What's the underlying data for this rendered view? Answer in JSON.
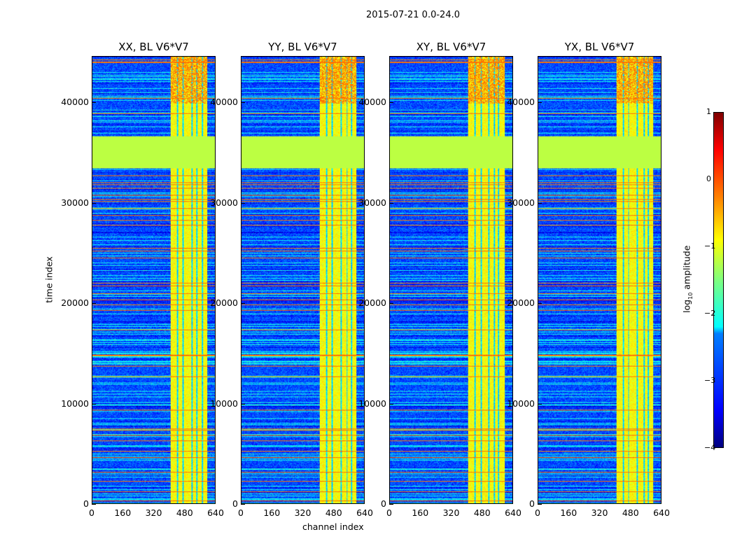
{
  "chart_data": {
    "type": "heatmap",
    "title": "2015-07-21 0.0-24.0",
    "panels": [
      {
        "title": "XX, BL V6*V7",
        "seed": 11
      },
      {
        "title": "YY, BL V6*V7",
        "seed": 23
      },
      {
        "title": "XY, BL V6*V7",
        "seed": 37
      },
      {
        "title": "YX, BL V6*V7",
        "seed": 53
      }
    ],
    "xlabel": "channel index",
    "ylabel": "time index",
    "xlim": [
      0,
      640
    ],
    "ylim": [
      0,
      44600
    ],
    "xticks": [
      "0",
      "160",
      "320",
      "480",
      "640"
    ],
    "yticks": [
      "0",
      "10000",
      "20000",
      "30000",
      "40000"
    ],
    "ytick_values": [
      0,
      10000,
      20000,
      30000,
      40000
    ],
    "xtick_values": [
      0,
      160,
      320,
      480,
      640
    ],
    "colorbar": {
      "label_prefix": "log",
      "label_sub": "10",
      "label_suffix": " amplitude",
      "range": [
        -4,
        1
      ],
      "ticks": [
        "1",
        "0",
        "−1",
        "−2",
        "−3",
        "−4"
      ],
      "tick_values": [
        1,
        0,
        -1,
        -2,
        -3,
        -4
      ],
      "colormap": "jet"
    },
    "features": {
      "background_log_amp": -3.0,
      "flagged_block_time": [
        33500,
        36700
      ],
      "flagged_block_log_amp": -1.2,
      "rfi_channel_range": [
        405,
        600
      ],
      "rfi_log_amp": -0.9,
      "flag_row_log_amp": -0.2
    }
  }
}
